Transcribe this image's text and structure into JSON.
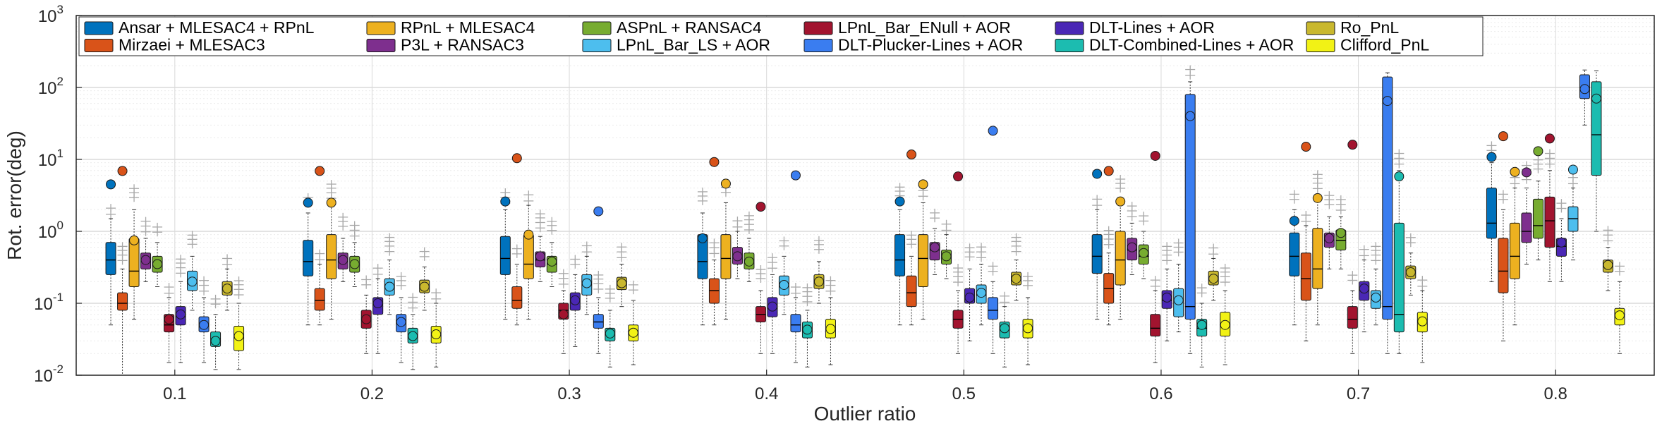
{
  "chart_data": {
    "type": "boxplot",
    "title": "",
    "xlabel": "Outlier ratio",
    "ylabel": "Rot. error(deg)",
    "yscale": "log",
    "ylim": [
      0.01,
      1000
    ],
    "y_ticks": [
      {
        "base": "10",
        "exp": "-2",
        "value": 0.01
      },
      {
        "base": "10",
        "exp": "-1",
        "value": 0.1
      },
      {
        "base": "10",
        "exp": "0",
        "value": 1
      },
      {
        "base": "10",
        "exp": "1",
        "value": 10
      },
      {
        "base": "10",
        "exp": "2",
        "value": 100
      },
      {
        "base": "10",
        "exp": "3",
        "value": 1000
      }
    ],
    "categories": [
      "0.1",
      "0.2",
      "0.3",
      "0.4",
      "0.5",
      "0.6",
      "0.7",
      "0.8"
    ],
    "grid": true,
    "legend_position": "top",
    "series": [
      {
        "name": "Ansar + MLESAC4 + RPnL",
        "color": "#0072BD",
        "median": [
          0.4,
          0.38,
          0.42,
          0.38,
          0.4,
          0.45,
          0.45,
          1.3
        ],
        "q1": [
          0.25,
          0.24,
          0.25,
          0.22,
          0.24,
          0.26,
          0.24,
          0.8
        ],
        "q3": [
          0.7,
          0.75,
          0.85,
          0.9,
          0.9,
          0.9,
          0.95,
          4.0
        ],
        "whisker_low": [
          0.05,
          0.05,
          0.06,
          0.05,
          0.05,
          0.06,
          0.05,
          0.2
        ],
        "whisker_high": [
          1.5,
          1.8,
          2.0,
          1.8,
          2.0,
          2.0,
          2.0,
          9.0
        ],
        "mean": [
          4.5,
          2.5,
          2.6,
          0.8,
          2.6,
          6.3,
          1.4,
          10.8
        ]
      },
      {
        "name": "Mirzaei + MLESAC3",
        "color": "#D95319",
        "median": [
          0.1,
          0.11,
          0.11,
          0.15,
          0.14,
          0.16,
          0.22,
          0.28
        ],
        "q1": [
          0.08,
          0.08,
          0.085,
          0.1,
          0.09,
          0.1,
          0.11,
          0.14
        ],
        "q3": [
          0.14,
          0.16,
          0.17,
          0.22,
          0.24,
          0.26,
          0.5,
          0.8
        ],
        "whisker_low": [
          0.01,
          0.05,
          0.05,
          0.05,
          0.05,
          0.05,
          0.03,
          0.03
        ],
        "whisker_high": [
          0.3,
          0.35,
          0.35,
          0.4,
          0.45,
          0.5,
          1.2,
          2.0
        ],
        "mean": [
          6.9,
          6.9,
          10.4,
          9.2,
          11.7,
          6.9,
          15.0,
          21.0
        ]
      },
      {
        "name": "RPnL + MLESAC4",
        "color": "#EDB120",
        "median": [
          0.28,
          0.4,
          0.35,
          0.42,
          0.42,
          0.4,
          0.3,
          0.45
        ],
        "q1": [
          0.17,
          0.22,
          0.22,
          0.22,
          0.17,
          0.18,
          0.16,
          0.22
        ],
        "q3": [
          0.8,
          0.9,
          0.9,
          0.9,
          0.9,
          1.0,
          1.1,
          1.3
        ],
        "whisker_low": [
          0.06,
          0.06,
          0.06,
          0.06,
          0.06,
          0.06,
          0.05,
          0.05
        ],
        "whisker_high": [
          2.0,
          2.2,
          2.3,
          2.5,
          2.5,
          2.7,
          3.0,
          4.0
        ],
        "mean": [
          0.75,
          2.5,
          0.9,
          4.6,
          4.5,
          2.6,
          2.9,
          6.7
        ]
      },
      {
        "name": "P3L + RANSAC3",
        "color": "#7E2F8E",
        "median": [
          0.38,
          0.38,
          0.4,
          0.45,
          0.55,
          0.55,
          0.75,
          1.0
        ],
        "q1": [
          0.3,
          0.3,
          0.32,
          0.35,
          0.4,
          0.4,
          0.6,
          0.7
        ],
        "q3": [
          0.5,
          0.5,
          0.52,
          0.6,
          0.7,
          0.8,
          0.95,
          1.8
        ],
        "whisker_low": [
          0.2,
          0.2,
          0.2,
          0.22,
          0.25,
          0.25,
          0.3,
          0.35
        ],
        "whisker_high": [
          0.8,
          0.8,
          0.85,
          1.0,
          1.1,
          1.3,
          1.6,
          4.0
        ],
        "mean": [
          0.4,
          0.4,
          0.45,
          0.45,
          0.6,
          0.6,
          0.8,
          6.6
        ]
      },
      {
        "name": "ASPnL + RANSAC4",
        "color": "#77AC30",
        "median": [
          0.35,
          0.35,
          0.35,
          0.38,
          0.45,
          0.45,
          0.75,
          1.2
        ],
        "q1": [
          0.27,
          0.27,
          0.27,
          0.3,
          0.35,
          0.35,
          0.55,
          0.8
        ],
        "q3": [
          0.45,
          0.45,
          0.45,
          0.5,
          0.55,
          0.65,
          1.05,
          2.8
        ],
        "whisker_low": [
          0.17,
          0.17,
          0.17,
          0.2,
          0.22,
          0.22,
          0.3,
          0.4
        ],
        "whisker_high": [
          0.7,
          0.7,
          0.7,
          0.8,
          0.9,
          1.0,
          1.6,
          5.0
        ],
        "mean": [
          0.35,
          0.35,
          0.38,
          0.38,
          0.45,
          0.5,
          0.95,
          13.0
        ]
      },
      {
        "name": "LPnL_Bar_ENull + AOR",
        "color": "#A2142F",
        "median": [
          0.05,
          0.06,
          0.08,
          0.07,
          0.06,
          0.045,
          0.06,
          1.4
        ],
        "q1": [
          0.04,
          0.045,
          0.06,
          0.055,
          0.045,
          0.035,
          0.045,
          0.6
        ],
        "q3": [
          0.07,
          0.08,
          0.1,
          0.09,
          0.08,
          0.07,
          0.09,
          3.0
        ],
        "whisker_low": [
          0.015,
          0.02,
          0.02,
          0.02,
          0.02,
          0.015,
          0.02,
          0.2
        ],
        "whisker_high": [
          0.12,
          0.13,
          0.15,
          0.15,
          0.15,
          0.15,
          0.15,
          7.0
        ],
        "mean": [
          0.06,
          0.06,
          0.07,
          2.2,
          5.8,
          11.2,
          16.0,
          19.5
        ]
      },
      {
        "name": "DLT-Lines + AOR",
        "color": "#4A27B5",
        "median": [
          0.065,
          0.095,
          0.11,
          0.085,
          0.12,
          0.11,
          0.15,
          0.62
        ],
        "q1": [
          0.05,
          0.07,
          0.08,
          0.065,
          0.1,
          0.085,
          0.11,
          0.45
        ],
        "q3": [
          0.09,
          0.12,
          0.14,
          0.12,
          0.16,
          0.15,
          0.2,
          0.8
        ],
        "whisker_low": [
          0.015,
          0.02,
          0.025,
          0.02,
          0.03,
          0.03,
          0.04,
          0.2
        ],
        "whisker_high": [
          0.2,
          0.22,
          0.25,
          0.25,
          0.3,
          0.3,
          0.4,
          1.5
        ],
        "mean": [
          0.07,
          0.1,
          0.11,
          0.09,
          0.12,
          0.12,
          0.16,
          0.7
        ]
      },
      {
        "name": "LPnL_Bar_LS + AOR",
        "color": "#4DBEEE",
        "median": [
          0.2,
          0.17,
          0.18,
          0.18,
          0.13,
          0.11,
          0.12,
          1.5
        ],
        "q1": [
          0.15,
          0.13,
          0.13,
          0.13,
          0.1,
          0.065,
          0.085,
          1.0
        ],
        "q3": [
          0.28,
          0.22,
          0.25,
          0.24,
          0.18,
          0.16,
          0.15,
          2.2
        ],
        "whisker_low": [
          0.08,
          0.07,
          0.07,
          0.07,
          0.05,
          0.04,
          0.05,
          0.4
        ],
        "whisker_high": [
          0.45,
          0.4,
          0.45,
          0.45,
          0.35,
          0.35,
          0.3,
          4.0
        ],
        "mean": [
          0.2,
          0.17,
          0.19,
          0.18,
          0.14,
          0.11,
          0.12,
          7.2
        ]
      },
      {
        "name": "DLT-Plucker-Lines + AOR",
        "color": "#3A7DF0",
        "median": [
          0.05,
          0.055,
          0.055,
          0.05,
          0.08,
          0.09,
          0.09,
          100
        ],
        "q1": [
          0.04,
          0.04,
          0.045,
          0.04,
          0.06,
          0.06,
          0.06,
          70
        ],
        "q3": [
          0.065,
          0.07,
          0.07,
          0.07,
          0.12,
          80,
          140,
          150
        ],
        "whisker_low": [
          0.015,
          0.015,
          0.02,
          0.015,
          0.02,
          0.02,
          0.02,
          30
        ],
        "whisker_high": [
          0.12,
          0.12,
          0.12,
          0.12,
          0.2,
          120,
          160,
          175
        ],
        "mean": [
          0.05,
          0.055,
          1.9,
          6.0,
          25,
          40,
          65,
          95
        ]
      },
      {
        "name": "DLT-Combined-Lines + AOR",
        "color": "#1CBCB0",
        "median": [
          0.032,
          0.035,
          0.037,
          0.043,
          0.043,
          0.045,
          0.07,
          22
        ],
        "q1": [
          0.025,
          0.028,
          0.03,
          0.033,
          0.033,
          0.035,
          0.04,
          6.0
        ],
        "q3": [
          0.04,
          0.045,
          0.045,
          0.055,
          0.055,
          0.06,
          1.3,
          120
        ],
        "whisker_low": [
          0.012,
          0.012,
          0.013,
          0.013,
          0.013,
          0.013,
          0.02,
          1.0
        ],
        "whisker_high": [
          0.07,
          0.07,
          0.08,
          0.08,
          0.09,
          0.1,
          7.0,
          170
        ],
        "mean": [
          0.03,
          0.035,
          0.038,
          0.043,
          0.045,
          0.05,
          5.8,
          70
        ]
      },
      {
        "name": "Ro_PnL",
        "color": "#C9B82E",
        "median": [
          0.16,
          0.17,
          0.19,
          0.2,
          0.22,
          0.22,
          0.27,
          0.33
        ],
        "q1": [
          0.13,
          0.14,
          0.155,
          0.16,
          0.18,
          0.18,
          0.22,
          0.27
        ],
        "q3": [
          0.2,
          0.21,
          0.23,
          0.25,
          0.27,
          0.28,
          0.33,
          0.4
        ],
        "whisker_low": [
          0.08,
          0.08,
          0.09,
          0.1,
          0.11,
          0.11,
          0.13,
          0.15
        ],
        "whisker_high": [
          0.3,
          0.32,
          0.35,
          0.38,
          0.4,
          0.42,
          0.5,
          0.6
        ],
        "mean": [
          0.16,
          0.17,
          0.19,
          0.2,
          0.22,
          0.22,
          0.27,
          0.34
        ]
      },
      {
        "name": "Clifford_PnL",
        "color": "#F2F215",
        "median": [
          0.033,
          0.036,
          0.038,
          0.043,
          0.044,
          0.05,
          0.055,
          0.067
        ],
        "q1": [
          0.022,
          0.028,
          0.03,
          0.033,
          0.033,
          0.035,
          0.04,
          0.05
        ],
        "q3": [
          0.048,
          0.048,
          0.05,
          0.06,
          0.06,
          0.075,
          0.075,
          0.085
        ],
        "whisker_low": [
          0.012,
          0.013,
          0.014,
          0.014,
          0.014,
          0.014,
          0.015,
          0.02
        ],
        "whisker_high": [
          0.1,
          0.1,
          0.11,
          0.12,
          0.12,
          0.15,
          0.15,
          0.2
        ],
        "mean": [
          0.035,
          0.037,
          0.039,
          0.044,
          0.045,
          0.05,
          0.056,
          0.068
        ]
      }
    ]
  }
}
